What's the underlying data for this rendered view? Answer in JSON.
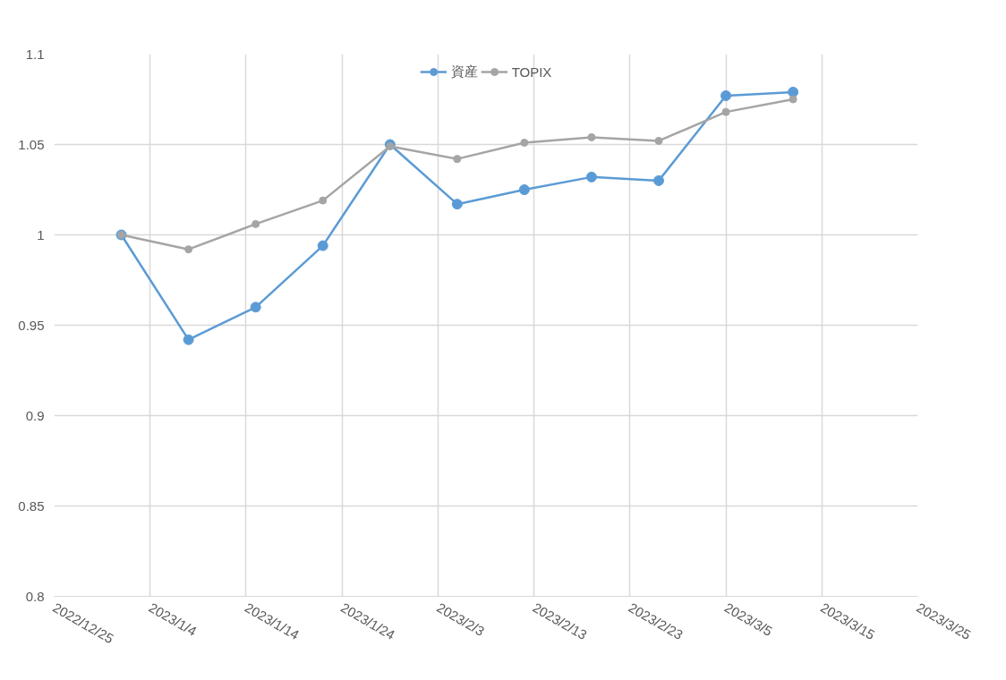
{
  "chart_data": {
    "type": "line",
    "x": [
      "2023-01-01",
      "2023-01-08",
      "2023-01-15",
      "2023-01-22",
      "2023-01-29",
      "2023-02-05",
      "2023-02-12",
      "2023-02-19",
      "2023-02-26",
      "2023-03-05",
      "2023-03-12"
    ],
    "series": [
      {
        "name": "資産",
        "color": "#5b9bd5",
        "values": [
          1.0,
          0.942,
          0.96,
          0.994,
          1.05,
          1.017,
          1.025,
          1.032,
          1.03,
          1.077,
          1.079
        ]
      },
      {
        "name": "TOPIX",
        "color": "#a5a5a5",
        "values": [
          1.0,
          0.992,
          1.006,
          1.019,
          1.049,
          1.042,
          1.051,
          1.054,
          1.052,
          1.068,
          1.075
        ]
      }
    ],
    "xlim": [
      "2022-12-25",
      "2023-03-25"
    ],
    "xticks": [
      {
        "value": "2022-12-25",
        "label": "2022/12/25"
      },
      {
        "value": "2023-01-04",
        "label": "2023/1/4"
      },
      {
        "value": "2023-01-14",
        "label": "2023/1/14"
      },
      {
        "value": "2023-01-24",
        "label": "2023/1/24"
      },
      {
        "value": "2023-02-03",
        "label": "2023/2/3"
      },
      {
        "value": "2023-02-13",
        "label": "2023/2/13"
      },
      {
        "value": "2023-02-23",
        "label": "2023/2/23"
      },
      {
        "value": "2023-03-05",
        "label": "2023/3/5"
      },
      {
        "value": "2023-03-15",
        "label": "2023/3/15"
      },
      {
        "value": "2023-03-25",
        "label": "2023/3/25"
      }
    ],
    "ylim": [
      0.8,
      1.1
    ],
    "yticks": [
      {
        "value": 0.8,
        "label": "0.8"
      },
      {
        "value": 0.85,
        "label": "0.85"
      },
      {
        "value": 0.9,
        "label": "0.9"
      },
      {
        "value": 0.95,
        "label": "0.95"
      },
      {
        "value": 1,
        "label": "1"
      },
      {
        "value": 1.05,
        "label": "1.05"
      },
      {
        "value": 1.1,
        "label": "1.1"
      }
    ],
    "grid": true,
    "legend": "top",
    "marker": "circle",
    "line_style": "solid"
  }
}
